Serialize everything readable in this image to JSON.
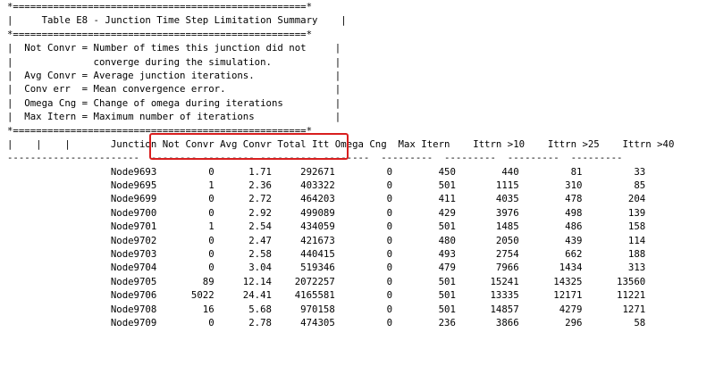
{
  "report": {
    "summary_box": [
      "*===================================================*",
      "|     Table E8 - Junction Time Step Limitation Summary    |",
      "*===================================================*",
      "|  Not Convr = Number of times this junction did not     |",
      "|              converge during the simulation.           |",
      "|  Avg Convr = Average junction iterations.              |",
      "|  Conv err  = Mean convergence error.                   |",
      "|  Omega Cng = Change of omega during iterations         |",
      "|  Max Itern = Maximum number of iterations              |",
      "*===================================================*"
    ],
    "header_line": "|    |    |       Junction Not Convr Avg Convr Total Itt Omega Cng  Max Itern    Ittrn >10    Ittrn >25    Ittrn >40",
    "dash_line": "-----------------------  -------- --------- ---------- --------  ---------  ---------  ---------  ---------",
    "rows": [
      "                  Node9693         0      1.71     292671         0        450        440         81         33",
      "                  Node9695         1      2.36     403322         0        501       1115        310         85",
      "                  Node9699         0      2.72     464203         0        411       4035        478        204",
      "                  Node9700         0      2.92     499089         0        429       3976        498        139",
      "                  Node9701         1      2.54     434059         0        501       1485        486        158",
      "                  Node9702         0      2.47     421673         0        480       2050        439        114",
      "                  Node9703         0      2.58     440415         0        493       2754        662        188",
      "                  Node9704         0      3.04     519346         0        479       7966       1434        313",
      "                  Node9705        89     12.14    2072257         0        501      15241      14325      13560",
      "                  Node9706      5022     24.41    4165581         0        501      13335      12171      11221",
      "                  Node9708        16      5.68     970158         0        501      14857       4279       1271",
      "                  Node9709         0      2.78     474305         0        236       3866        296         58"
    ]
  }
}
